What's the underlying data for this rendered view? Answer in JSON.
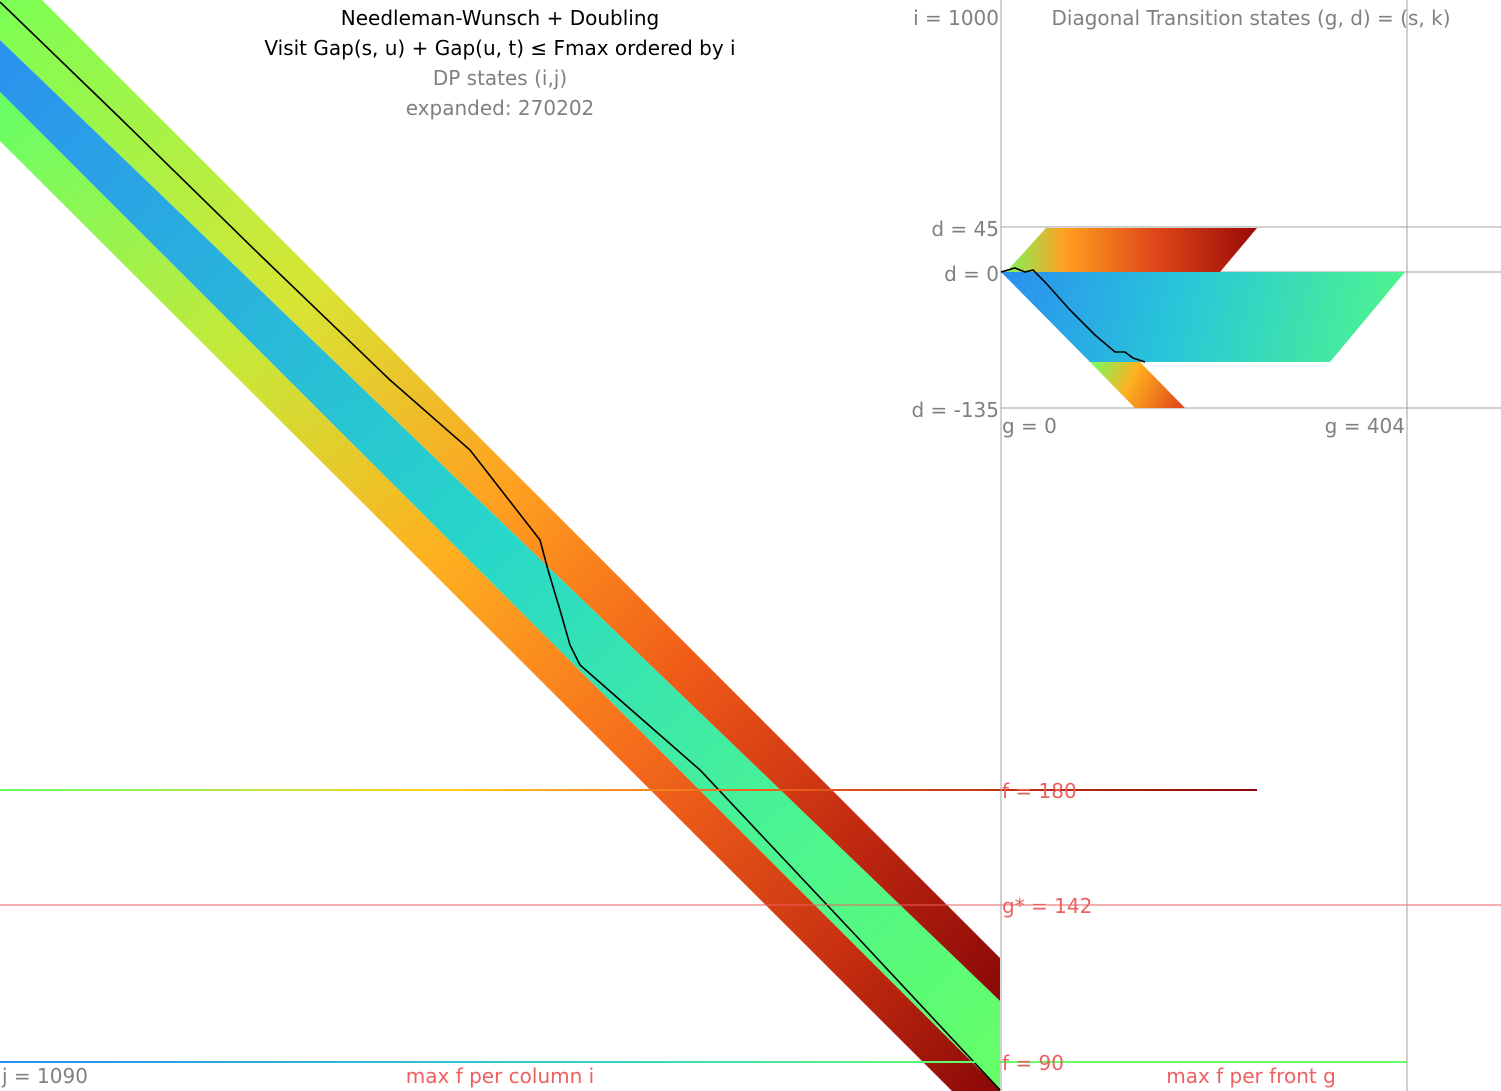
{
  "left_panel": {
    "title": "Needleman-Wunsch + Doubling",
    "subtitle": "Visit Gap(s, u) + Gap(u, t) ≤ Fmax ordered by i",
    "states_label": "DP states (i,j)",
    "expanded_label": "expanded: 270202",
    "i_label": "i = 1000",
    "j_label": "j = 1090",
    "bottom_caption": "max f per column i"
  },
  "right_panel": {
    "title": "Diagonal Transition states (g, d) = (s, k)",
    "d_labels": [
      "d = 45",
      "d = 0",
      "d = -135"
    ],
    "g_labels": [
      "g = 0",
      "g = 404"
    ],
    "f_labels": [
      "f = 180",
      "g* = 142",
      "f = 90"
    ],
    "bottom_caption": "max f per front g"
  },
  "colors": {
    "blue": "#2a8ef0",
    "cyan": "#28d2d0",
    "green": "#5cff72",
    "yellow": "#e8e030",
    "orange": "#ff8020",
    "red": "#c02810",
    "darkred": "#8a0808",
    "guide_red": "#ee6060",
    "axis_grey": "#a0a0a0"
  }
}
